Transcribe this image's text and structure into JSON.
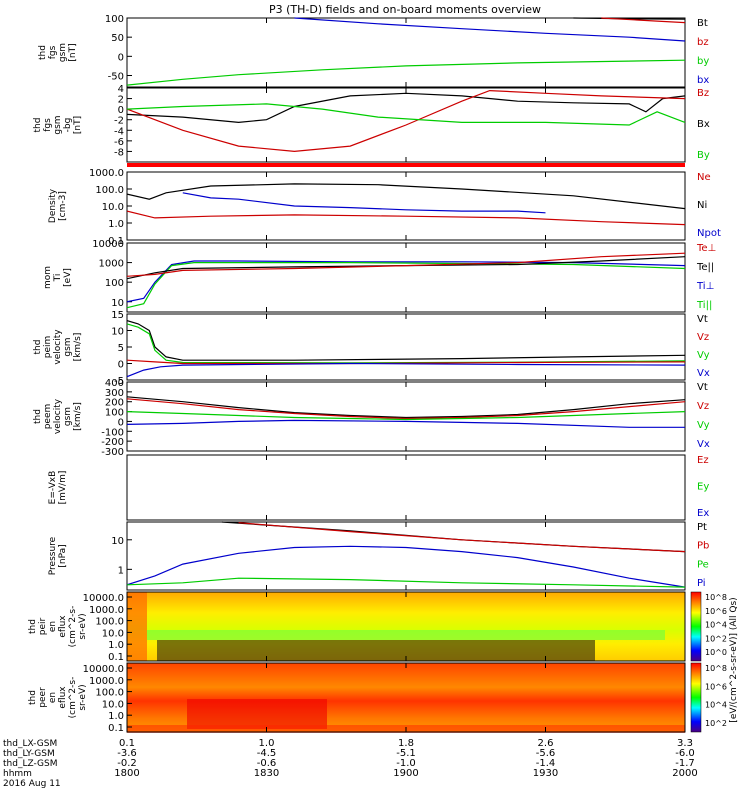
{
  "title": "P3 (TH-D) fields and on-board moments overview",
  "date_label": "2016 Aug 11",
  "ephemeris": {
    "labels": [
      "thd_LX-GSM",
      "thd_LY-GSM",
      "thd_LZ-GSM",
      "hhmm"
    ],
    "rows": [
      [
        "0.1",
        "1.0",
        "1.8",
        "2.6",
        "3.3"
      ],
      [
        "-3.6",
        "-4.5",
        "-5.1",
        "-5.6",
        "-6.0"
      ],
      [
        "-0.2",
        "-0.6",
        "-1.0",
        "-1.4",
        "-1.7"
      ],
      [
        "1800",
        "1830",
        "1900",
        "1930",
        "2000"
      ]
    ]
  },
  "colorbar": {
    "label": "[eV/(cm^2-s-sr-eV)] (All Qs)",
    "ticks1": [
      "10^8",
      "10^6",
      "10^4",
      "10^2",
      "10^0"
    ],
    "ticks2": [
      "10^8",
      "10^6",
      "10^4",
      "10^2"
    ]
  },
  "colors": {
    "black": "#000000",
    "red": "#cc0000",
    "green": "#00cc00",
    "blue": "#0000cc",
    "bar_red": "#ff0000"
  },
  "chart_data": [
    {
      "type": "line",
      "ylabel": [
        "thd",
        "fgs",
        "gsm",
        "[nT]"
      ],
      "ylim": [
        -80,
        100
      ],
      "yticks": [
        "100",
        "50",
        "0",
        "-50"
      ],
      "time_range": [
        "18:00",
        "20:00"
      ],
      "legend": [
        {
          "label": "Bt",
          "color": "#000000"
        },
        {
          "label": "bz",
          "color": "#cc0000"
        },
        {
          "label": "by",
          "color": "#00cc00"
        },
        {
          "label": "bx",
          "color": "#0000cc"
        }
      ],
      "series": [
        {
          "label": "bx",
          "color": "#0000cc",
          "t": [
            0.3,
            0.45,
            0.6,
            0.75,
            0.9,
            1.0
          ],
          "y": [
            100,
            85,
            72,
            60,
            50,
            40
          ]
        },
        {
          "label": "Bt",
          "color": "#000000",
          "t": [
            0.8,
            0.9,
            1.0
          ],
          "y": [
            100,
            98,
            97
          ]
        },
        {
          "label": "bz",
          "color": "#cc0000",
          "t": [
            0.85,
            0.95,
            1.0
          ],
          "y": [
            100,
            92,
            88
          ]
        },
        {
          "label": "by",
          "color": "#00cc00",
          "t": [
            0,
            0.1,
            0.2,
            0.35,
            0.5,
            0.7,
            1.0
          ],
          "y": [
            -75,
            -60,
            -48,
            -35,
            -25,
            -17,
            -10
          ]
        }
      ]
    },
    {
      "type": "line",
      "ylabel": [
        "thd",
        "fgs",
        "gsm",
        "-bg",
        "[nT]"
      ],
      "ylim": [
        -10,
        4
      ],
      "yticks": [
        "4",
        "2",
        "0",
        "-2",
        "-4",
        "-6",
        "-8"
      ],
      "time_range": [
        "18:00",
        "20:00"
      ],
      "legend": [
        {
          "label": "Bz",
          "color": "#cc0000"
        },
        {
          "label": "Bx",
          "color": "#000000"
        },
        {
          "label": "By",
          "color": "#00cc00"
        }
      ],
      "series": [
        {
          "label": "Bx",
          "color": "#000000",
          "t": [
            0,
            0.1,
            0.2,
            0.25,
            0.3,
            0.4,
            0.5,
            0.6,
            0.7,
            0.8,
            0.9,
            0.93,
            0.96,
            1.0
          ],
          "y": [
            -1,
            -1.5,
            -2.5,
            -2,
            0.5,
            2.5,
            3,
            2.5,
            1.5,
            1.2,
            1,
            -0.5,
            2,
            2.5
          ]
        },
        {
          "label": "Bz",
          "color": "#cc0000",
          "t": [
            0,
            0.1,
            0.2,
            0.3,
            0.4,
            0.5,
            0.6,
            0.65,
            0.75,
            0.85,
            1.0
          ],
          "y": [
            0,
            -4,
            -7,
            -8,
            -7,
            -3,
            1.5,
            3.5,
            3,
            2.5,
            2
          ]
        },
        {
          "label": "By",
          "color": "#00cc00",
          "t": [
            0,
            0.1,
            0.25,
            0.35,
            0.45,
            0.6,
            0.75,
            0.9,
            0.95,
            1.0
          ],
          "y": [
            0,
            0.5,
            1,
            0,
            -1.5,
            -2.5,
            -2.5,
            -3,
            -0.5,
            -2.5
          ]
        }
      ]
    },
    {
      "type": "line",
      "scale": "log",
      "ylabel": [
        "Density",
        "[cm-3]"
      ],
      "ylim": [
        0.1,
        1000
      ],
      "yticks": [
        "1000.0",
        "100.0",
        "10.0",
        "1.0",
        "0.1"
      ],
      "time_range": [
        "18:00",
        "20:00"
      ],
      "legend": [
        {
          "label": "Ne",
          "color": "#cc0000"
        },
        {
          "label": "Ni",
          "color": "#000000"
        },
        {
          "label": "Npot",
          "color": "#0000cc"
        }
      ],
      "series": [
        {
          "label": "Ni",
          "color": "#000000",
          "t": [
            0,
            0.04,
            0.07,
            0.15,
            0.3,
            0.45,
            0.6,
            0.8,
            1.0
          ],
          "y": [
            50,
            25,
            60,
            150,
            200,
            180,
            100,
            40,
            7
          ]
        },
        {
          "label": "Ne",
          "color": "#cc0000",
          "t": [
            0,
            0.05,
            0.15,
            0.3,
            0.5,
            0.7,
            0.85,
            1.0
          ],
          "y": [
            5,
            2,
            2.5,
            3,
            2.5,
            2,
            1.2,
            0.8
          ]
        },
        {
          "label": "Npot",
          "color": "#0000cc",
          "t": [
            0.1,
            0.15,
            0.2,
            0.3,
            0.4,
            0.5,
            0.6,
            0.7,
            0.75
          ],
          "y": [
            60,
            30,
            25,
            10,
            8,
            6,
            5,
            5,
            4
          ]
        }
      ]
    },
    {
      "type": "line",
      "scale": "log",
      "ylabel": [
        "mom",
        "Ti",
        "[eV]"
      ],
      "ylim": [
        3,
        10000
      ],
      "yticks": [
        "10000",
        "1000",
        "100",
        "10"
      ],
      "time_range": [
        "18:00",
        "20:00"
      ],
      "legend": [
        {
          "label": "Te⊥",
          "color": "#cc0000"
        },
        {
          "label": "Te||",
          "color": "#000000"
        },
        {
          "label": "Ti⊥",
          "color": "#0000cc"
        },
        {
          "label": "Ti||",
          "color": "#00cc00"
        }
      ],
      "series": [
        {
          "label": "Ti⊥",
          "color": "#0000cc",
          "t": [
            0,
            0.03,
            0.05,
            0.08,
            0.12,
            0.2,
            0.4,
            0.6,
            0.8,
            1.0
          ],
          "y": [
            10,
            15,
            100,
            800,
            1200,
            1200,
            1100,
            1100,
            1000,
            700
          ]
        },
        {
          "label": "Ti||",
          "color": "#00cc00",
          "t": [
            0,
            0.03,
            0.05,
            0.08,
            0.12,
            0.2,
            0.4,
            0.6,
            0.8,
            1.0
          ],
          "y": [
            5,
            8,
            80,
            700,
            1000,
            1000,
            1000,
            900,
            800,
            500
          ]
        },
        {
          "label": "Te||",
          "color": "#000000",
          "t": [
            0,
            0.05,
            0.1,
            0.3,
            0.5,
            0.7,
            0.85,
            1.0
          ],
          "y": [
            150,
            300,
            500,
            600,
            700,
            800,
            1200,
            2000
          ]
        },
        {
          "label": "Te⊥",
          "color": "#cc0000",
          "t": [
            0,
            0.05,
            0.1,
            0.3,
            0.5,
            0.7,
            0.85,
            1.0
          ],
          "y": [
            200,
            250,
            400,
            500,
            700,
            1000,
            2000,
            3000
          ]
        }
      ]
    },
    {
      "type": "line",
      "ylabel": [
        "thd",
        "peim",
        "velocity",
        "gsm",
        "[km/s]"
      ],
      "ylim": [
        -5,
        15
      ],
      "yticks": [
        "15",
        "10",
        "5",
        "0",
        "-5"
      ],
      "time_range": [
        "18:00",
        "20:00"
      ],
      "legend": [
        {
          "label": "Vt",
          "color": "#000000"
        },
        {
          "label": "Vz",
          "color": "#cc0000"
        },
        {
          "label": "Vy",
          "color": "#00cc00"
        },
        {
          "label": "Vx",
          "color": "#0000cc"
        }
      ],
      "series": [
        {
          "label": "Vt",
          "color": "#000000",
          "t": [
            0,
            0.02,
            0.04,
            0.05,
            0.07,
            0.1,
            0.3,
            0.6,
            0.8,
            1.0
          ],
          "y": [
            13,
            12,
            10,
            5,
            2,
            1,
            1,
            1.5,
            2,
            2.5
          ]
        },
        {
          "label": "Vy",
          "color": "#00cc00",
          "t": [
            0,
            0.02,
            0.04,
            0.05,
            0.07,
            0.1,
            0.4,
            0.7,
            1.0
          ],
          "y": [
            12,
            11,
            9,
            4,
            1,
            0.3,
            0.2,
            0.4,
            0.8
          ]
        },
        {
          "label": "Vz",
          "color": "#cc0000",
          "t": [
            0,
            0.05,
            0.1,
            0.4,
            0.7,
            1.0
          ],
          "y": [
            1,
            0.5,
            0,
            0,
            0.3,
            0.5
          ]
        },
        {
          "label": "Vx",
          "color": "#0000cc",
          "t": [
            0,
            0.03,
            0.06,
            0.1,
            0.4,
            0.7,
            1.0
          ],
          "y": [
            -4,
            -2,
            -1,
            -0.5,
            0,
            -0.3,
            -0.5
          ]
        }
      ]
    },
    {
      "type": "line",
      "ylabel": [
        "thd",
        "peem",
        "velocity",
        "gsm",
        "[km/s]"
      ],
      "ylim": [
        -300,
        400
      ],
      "yticks": [
        "400",
        "300",
        "200",
        "100",
        "0",
        "-100",
        "-200",
        "-300"
      ],
      "time_range": [
        "18:00",
        "20:00"
      ],
      "legend": [
        {
          "label": "Vt",
          "color": "#000000"
        },
        {
          "label": "Vz",
          "color": "#cc0000"
        },
        {
          "label": "Vy",
          "color": "#00cc00"
        },
        {
          "label": "Vx",
          "color": "#0000cc"
        }
      ],
      "series": [
        {
          "label": "Vt",
          "color": "#000000",
          "t": [
            0,
            0.1,
            0.2,
            0.3,
            0.4,
            0.5,
            0.6,
            0.7,
            0.8,
            0.9,
            1.0
          ],
          "y": [
            250,
            200,
            140,
            90,
            60,
            40,
            50,
            70,
            120,
            180,
            220
          ]
        },
        {
          "label": "Vz",
          "color": "#cc0000",
          "t": [
            0,
            0.1,
            0.2,
            0.3,
            0.4,
            0.5,
            0.6,
            0.7,
            0.8,
            0.9,
            1.0
          ],
          "y": [
            230,
            180,
            120,
            80,
            50,
            30,
            40,
            60,
            100,
            150,
            200
          ]
        },
        {
          "label": "Vy",
          "color": "#00cc00",
          "t": [
            0,
            0.1,
            0.2,
            0.3,
            0.4,
            0.5,
            0.6,
            0.7,
            0.8,
            0.9,
            1.0
          ],
          "y": [
            100,
            80,
            60,
            40,
            30,
            20,
            30,
            40,
            60,
            80,
            100
          ]
        },
        {
          "label": "Vx",
          "color": "#0000cc",
          "t": [
            0,
            0.1,
            0.2,
            0.3,
            0.5,
            0.7,
            0.9,
            1.0
          ],
          "y": [
            -30,
            -20,
            0,
            10,
            0,
            -20,
            -60,
            -60
          ]
        }
      ]
    },
    {
      "type": "line",
      "ylabel": [
        "E=-VxB",
        "[mV/m]"
      ],
      "time_range": [
        "18:00",
        "20:00"
      ],
      "legend": [
        {
          "label": "Ez",
          "color": "#cc0000"
        },
        {
          "label": "Ey",
          "color": "#00cc00"
        },
        {
          "label": "Ex",
          "color": "#0000cc"
        }
      ],
      "series": []
    },
    {
      "type": "line",
      "scale": "log",
      "ylabel": [
        "Pressure",
        "[nPa]"
      ],
      "ylim": [
        0.2,
        40
      ],
      "yticks": [
        "10",
        "1"
      ],
      "time_range": [
        "18:00",
        "20:00"
      ],
      "legend": [
        {
          "label": "Pt",
          "color": "#000000"
        },
        {
          "label": "Pb",
          "color": "#cc0000"
        },
        {
          "label": "Pe",
          "color": "#00cc00"
        },
        {
          "label": "Pi",
          "color": "#0000cc"
        }
      ],
      "series": [
        {
          "label": "Pt",
          "color": "#000000",
          "t": [
            0.17,
            0.4,
            0.6,
            0.8,
            1.0
          ],
          "y": [
            40,
            20,
            10,
            6,
            4
          ]
        },
        {
          "label": "Pb",
          "color": "#cc0000",
          "t": [
            0.2,
            0.4,
            0.6,
            0.8,
            1.0
          ],
          "y": [
            38,
            19,
            10,
            6,
            4
          ]
        },
        {
          "label": "Pi",
          "color": "#0000cc",
          "t": [
            0,
            0.05,
            0.1,
            0.2,
            0.3,
            0.4,
            0.5,
            0.6,
            0.7,
            0.8,
            0.9,
            1.0
          ],
          "y": [
            0.3,
            0.6,
            1.5,
            3.5,
            5.5,
            6,
            5.5,
            4,
            2.5,
            1.2,
            0.5,
            0.25
          ]
        },
        {
          "label": "Pe",
          "color": "#00cc00",
          "t": [
            0,
            0.1,
            0.2,
            0.4,
            0.6,
            0.8,
            1.0
          ],
          "y": [
            0.3,
            0.35,
            0.5,
            0.45,
            0.35,
            0.3,
            0.25
          ]
        }
      ]
    },
    {
      "type": "heatmap",
      "ylabel": [
        "thd",
        "peir",
        "en",
        "eflux"
      ],
      "yticks": [
        "10000.0",
        "1000.0",
        "100.0",
        "10.0",
        "1.0",
        "0.1"
      ]
    },
    {
      "type": "heatmap",
      "ylabel": [
        "thd",
        "peer",
        "en",
        "eflux"
      ],
      "yticks": [
        "10000.0",
        "1000.0",
        "100.0",
        "10.0",
        "1.0",
        "0.1"
      ]
    }
  ],
  "panel_units_heatmap": [
    "(cm^2-s-",
    "sr-eV)"
  ]
}
